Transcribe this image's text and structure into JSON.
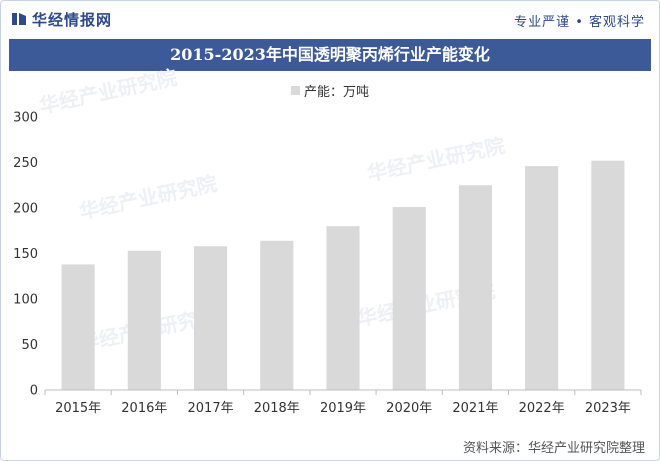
{
  "header": {
    "logo_text": "华经情报网",
    "tagline": "专业严谨 • 客观科学"
  },
  "source_note": "资料来源：华经产业研究院整理",
  "watermark_text": "华经产业研究院",
  "colors": {
    "accent": "#3d5a98",
    "bar": "#d9d9d9",
    "axis": "#bfbfbf"
  },
  "chart_data": {
    "type": "bar",
    "title": "2015-2023年中国透明聚丙烯行业产能变化",
    "categories": [
      "2015年",
      "2016年",
      "2017年",
      "2018年",
      "2019年",
      "2020年",
      "2021年",
      "2022年",
      "2023年"
    ],
    "series": [
      {
        "name": "产能：万吨",
        "values": [
          138,
          153,
          158,
          164,
          180,
          201,
          225,
          246,
          252
        ]
      }
    ],
    "ylim": [
      0,
      300
    ],
    "yticks": [
      0,
      50,
      100,
      150,
      200,
      250,
      300
    ],
    "grid": false,
    "legend_position": "top"
  }
}
